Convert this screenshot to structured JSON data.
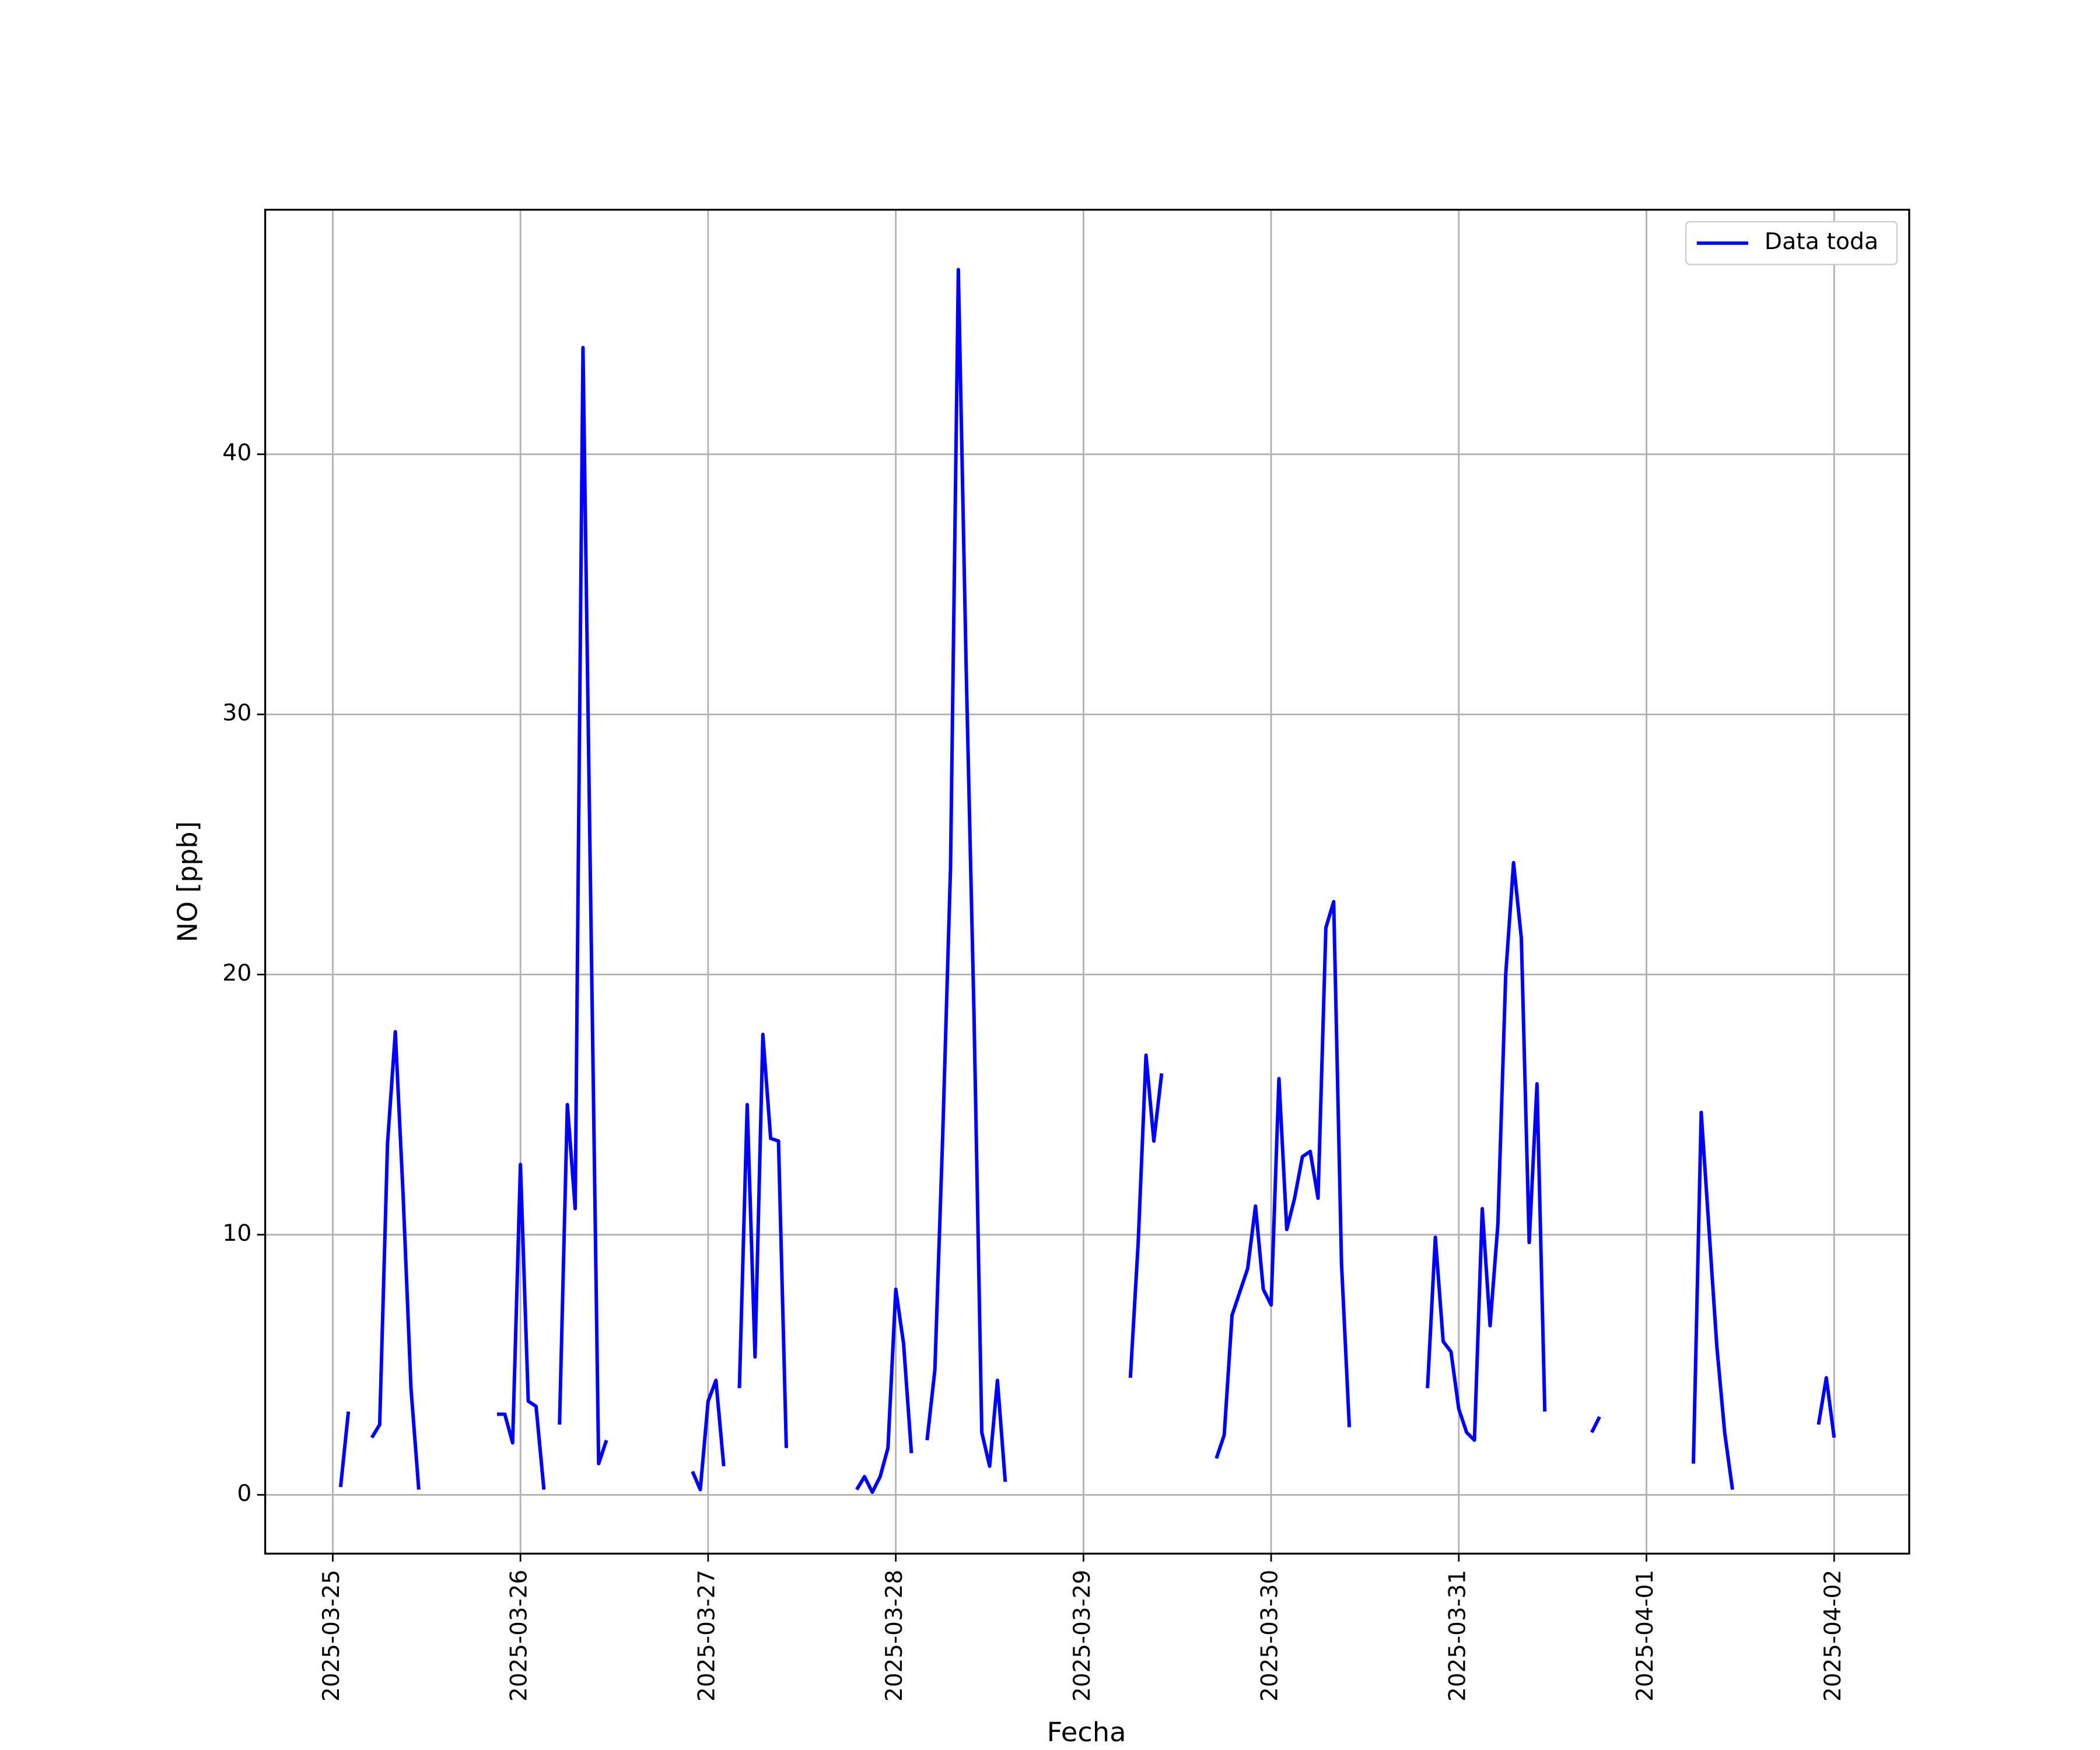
{
  "chart_data": {
    "type": "line",
    "x_label": "Fecha",
    "y_label": "NO [ppb]",
    "xlim": [
      20171.64,
      20180.4
    ],
    "ylim": [
      -2.26,
      49.4
    ],
    "xticks": [
      {
        "value": 20172,
        "label": "2025-03-25"
      },
      {
        "value": 20173,
        "label": "2025-03-26"
      },
      {
        "value": 20174,
        "label": "2025-03-27"
      },
      {
        "value": 20175,
        "label": "2025-03-28"
      },
      {
        "value": 20176,
        "label": "2025-03-29"
      },
      {
        "value": 20177,
        "label": "2025-03-30"
      },
      {
        "value": 20178,
        "label": "2025-03-31"
      },
      {
        "value": 20179,
        "label": "2025-04-01"
      },
      {
        "value": 20180,
        "label": "2025-04-02"
      }
    ],
    "yticks": [
      0,
      10,
      20,
      30,
      40
    ],
    "grid": true,
    "legend": "upper right",
    "x": [
      20172.0417,
      20172.0833,
      20172.125,
      20172.2083,
      20172.25,
      20172.2917,
      20172.3333,
      20172.375,
      20172.4167,
      20172.4583,
      20172.5,
      20172.875,
      20172.9167,
      20172.9583,
      20173,
      20173.0417,
      20173.0833,
      20173.125,
      20173.1667,
      20173.2083,
      20173.25,
      20173.2917,
      20173.3333,
      20173.375,
      20173.4167,
      20173.4583,
      20173.5,
      20173.9167,
      20173.9583,
      20174,
      20174.0417,
      20174.0833,
      20174.125,
      20174.1667,
      20174.2083,
      20174.25,
      20174.2917,
      20174.3333,
      20174.375,
      20174.4167,
      20174.4583,
      20174.7917,
      20174.8333,
      20174.875,
      20174.9167,
      20174.9583,
      20175,
      20175.0417,
      20175.0833,
      20175.125,
      20175.1667,
      20175.2083,
      20175.25,
      20175.2917,
      20175.3333,
      20175.375,
      20175.4167,
      20175.4583,
      20175.5,
      20175.5417,
      20175.5833,
      20175.625,
      20176.25,
      20176.2917,
      20176.3333,
      20176.375,
      20176.4167,
      20176.4583,
      20176.7083,
      20176.75,
      20176.7917,
      20176.8333,
      20176.875,
      20176.9167,
      20176.9583,
      20177,
      20177.0417,
      20177.0833,
      20177.125,
      20177.1667,
      20177.2083,
      20177.25,
      20177.2917,
      20177.3333,
      20177.375,
      20177.4167,
      20177.4583,
      20177.8333,
      20177.875,
      20177.9167,
      20177.9583,
      20178,
      20178.0417,
      20178.0833,
      20178.125,
      20178.1667,
      20178.2083,
      20178.25,
      20178.2917,
      20178.3333,
      20178.375,
      20178.4167,
      20178.4583,
      20178.5,
      20178.7083,
      20178.75,
      20178.7917,
      20179.25,
      20179.2917,
      20179.3333,
      20179.375,
      20179.4167,
      20179.4583,
      20179.5,
      20179.9167,
      20179.9583,
      20180
    ],
    "series": [
      {
        "name": "Data toda",
        "color": "#0000ff",
        "values": [
          0.3,
          3.2,
          null,
          2.2,
          2.7,
          13.5,
          17.8,
          11.5,
          4.1,
          0.2,
          null,
          3.1,
          3.1,
          2.0,
          12.7,
          3.6,
          3.4,
          0.2,
          null,
          2.7,
          15.0,
          11.0,
          44.1,
          22.5,
          1.2,
          2.1,
          null,
          0.9,
          0.2,
          3.6,
          4.4,
          1.1,
          null,
          4.1,
          15.0,
          5.3,
          17.7,
          13.7,
          13.6,
          1.8,
          null,
          0.2,
          0.7,
          0.1,
          0.7,
          1.8,
          7.9,
          5.8,
          1.6,
          null,
          2.1,
          4.8,
          13.8,
          24.1,
          47.1,
          31.8,
          18.5,
          2.4,
          1.1,
          4.4,
          0.5,
          null,
          4.5,
          9.7,
          16.9,
          13.6,
          16.2,
          null,
          1.4,
          2.3,
          6.9,
          7.8,
          8.7,
          11.1,
          7.9,
          7.3,
          16.0,
          10.2,
          11.4,
          13.0,
          13.2,
          11.4,
          21.8,
          22.8,
          8.9,
          2.6,
          null,
          4.1,
          9.9,
          5.9,
          5.5,
          3.3,
          2.4,
          2.1,
          11.0,
          6.5,
          10.4,
          20.0,
          24.3,
          21.4,
          9.7,
          15.8,
          3.2,
          null,
          2.4,
          3.0,
          null,
          1.2,
          14.7,
          10.2,
          5.7,
          2.4,
          0.2,
          null,
          2.7,
          4.5,
          2.2
        ]
      }
    ]
  }
}
